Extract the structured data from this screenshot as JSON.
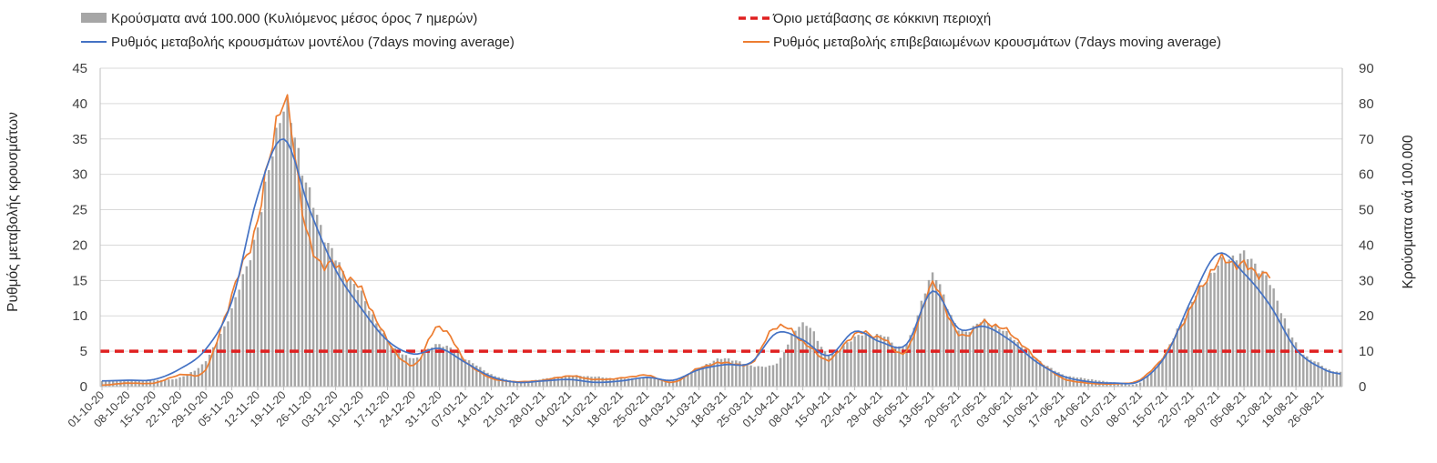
{
  "chart_data": {
    "type": "bar+line",
    "legend": {
      "bars": "Κρούσματα ανά 100.000 (Κυλιόμενος μέσος όρος 7 ημερών)",
      "threshold": "Όριο μετάβασης σε κόκκινη περιοχή",
      "model": "Ρυθμός μεταβολής κρουσμάτων μοντέλου (7days moving average)",
      "confirmed": "Ρυθμός μεταβολής επιβεβαιωμένων κρουσμάτων (7days moving average)"
    },
    "ylabel_left": "Ρυθμός μεταβολής κρουσμάτων",
    "ylabel_right": "Κρούσματα ανά 100.000",
    "ylim_left": [
      0,
      45
    ],
    "ylim_right": [
      0,
      90
    ],
    "yticks_left": [
      "0",
      "5",
      "10",
      "15",
      "20",
      "25",
      "30",
      "35",
      "40",
      "45"
    ],
    "yticks_right": [
      "0",
      "10",
      "20",
      "30",
      "40",
      "50",
      "60",
      "70",
      "80",
      "90"
    ],
    "x_start": "2020-10-01",
    "x_end": "2021-08-31",
    "xtick_labels": [
      "01-10-20",
      "08-10-20",
      "15-10-20",
      "22-10-20",
      "29-10-20",
      "05-11-20",
      "12-11-20",
      "19-11-20",
      "26-11-20",
      "03-12-20",
      "10-12-20",
      "17-12-20",
      "24-12-20",
      "31-12-20",
      "07-01-21",
      "14-01-21",
      "21-01-21",
      "28-01-21",
      "04-02-21",
      "11-02-21",
      "18-02-21",
      "25-02-21",
      "04-03-21",
      "11-03-21",
      "18-03-21",
      "25-03-21",
      "01-04-21",
      "08-04-21",
      "15-04-21",
      "22-04-21",
      "29-04-21",
      "06-05-21",
      "13-05-21",
      "20-05-21",
      "27-05-21",
      "03-06-21",
      "10-06-21",
      "17-06-21",
      "24-06-21",
      "01-07-21",
      "08-07-21",
      "15-07-21",
      "22-07-21",
      "29-07-21",
      "05-08-21",
      "12-08-21",
      "19-08-21",
      "26-08-21"
    ],
    "threshold_value": 5,
    "grid": "horizontal",
    "legend_position": "top",
    "colors": {
      "bars": "#a6a6a6",
      "threshold": "#e02020",
      "model": "#4472c4",
      "confirmed": "#ed7d31"
    },
    "bars_weekly": {
      "dates": [
        "2020-10-01",
        "2020-10-08",
        "2020-10-15",
        "2020-10-22",
        "2020-10-29",
        "2020-11-05",
        "2020-11-12",
        "2020-11-19",
        "2020-11-26",
        "2020-12-03",
        "2020-12-10",
        "2020-12-17",
        "2020-12-24",
        "2020-12-31",
        "2021-01-07",
        "2021-01-14",
        "2021-01-21",
        "2021-01-28",
        "2021-02-04",
        "2021-02-11",
        "2021-02-18",
        "2021-02-25",
        "2021-03-04",
        "2021-03-11",
        "2021-03-18",
        "2021-03-25",
        "2021-04-01",
        "2021-04-08",
        "2021-04-15",
        "2021-04-22",
        "2021-04-29",
        "2021-05-06",
        "2021-05-13",
        "2021-05-20",
        "2021-05-27",
        "2021-06-03",
        "2021-06-10",
        "2021-06-17",
        "2021-06-24",
        "2021-07-01",
        "2021-07-08",
        "2021-07-15",
        "2021-07-22",
        "2021-07-29",
        "2021-08-05",
        "2021-08-12",
        "2021-08-19",
        "2021-08-26",
        "2021-08-31"
      ],
      "values": [
        1.6,
        1.8,
        1.8,
        2.6,
        7.5,
        22,
        45,
        78,
        54,
        36,
        26,
        13,
        8,
        12,
        8,
        3.5,
        1.5,
        2.2,
        3.1,
        2.8,
        2.2,
        2.6,
        1.6,
        5.4,
        8,
        6,
        6.8,
        18,
        9.2,
        14,
        14.6,
        12,
        31,
        16,
        18.4,
        14.2,
        8,
        3.5,
        2.2,
        1.2,
        1.2,
        10,
        24,
        34,
        37,
        29,
        12,
        6,
        4
      ]
    },
    "model_weekly": {
      "dates": [
        "2020-10-01",
        "2020-10-08",
        "2020-10-15",
        "2020-10-22",
        "2020-10-29",
        "2020-11-05",
        "2020-11-12",
        "2020-11-19",
        "2020-11-26",
        "2020-12-03",
        "2020-12-10",
        "2020-12-17",
        "2020-12-24",
        "2020-12-31",
        "2021-01-07",
        "2021-01-14",
        "2021-01-21",
        "2021-01-28",
        "2021-02-04",
        "2021-02-11",
        "2021-02-18",
        "2021-02-25",
        "2021-03-04",
        "2021-03-11",
        "2021-03-18",
        "2021-03-25",
        "2021-04-01",
        "2021-04-08",
        "2021-04-15",
        "2021-04-22",
        "2021-04-29",
        "2021-05-06",
        "2021-05-13",
        "2021-05-20",
        "2021-05-27",
        "2021-06-03",
        "2021-06-10",
        "2021-06-17",
        "2021-06-24",
        "2021-07-01",
        "2021-07-08",
        "2021-07-15",
        "2021-07-22",
        "2021-07-29",
        "2021-08-05",
        "2021-08-12",
        "2021-08-19",
        "2021-08-26",
        "2021-08-31"
      ],
      "values": [
        0.8,
        0.9,
        1.0,
        2.5,
        5.3,
        12,
        27,
        35,
        25,
        16.5,
        11,
        6.5,
        4.6,
        5.4,
        3.4,
        1.4,
        0.6,
        0.8,
        1.0,
        0.6,
        0.8,
        1.3,
        0.9,
        2.4,
        3.1,
        3.4,
        7.6,
        6.6,
        4.4,
        7.8,
        6.3,
        6.0,
        13.5,
        8.2,
        8.5,
        6.5,
        3.5,
        1.5,
        0.7,
        0.5,
        0.8,
        4.5,
        12.5,
        18.8,
        16,
        11.5,
        5.3,
        2.6,
        1.8
      ]
    },
    "confirmed_weekly": {
      "dates": [
        "2020-10-01",
        "2020-10-08",
        "2020-10-15",
        "2020-10-22",
        "2020-10-29",
        "2020-11-05",
        "2020-11-12",
        "2020-11-19",
        "2020-11-26",
        "2020-12-03",
        "2020-12-10",
        "2020-12-17",
        "2020-12-24",
        "2020-12-31",
        "2021-01-07",
        "2021-01-14",
        "2021-01-21",
        "2021-01-28",
        "2021-02-04",
        "2021-02-11",
        "2021-02-18",
        "2021-02-25",
        "2021-03-04",
        "2021-03-11",
        "2021-03-18",
        "2021-03-25",
        "2021-04-01",
        "2021-04-08",
        "2021-04-15",
        "2021-04-22",
        "2021-04-29",
        "2021-05-06",
        "2021-05-13",
        "2021-05-20",
        "2021-05-27",
        "2021-06-03",
        "2021-06-10",
        "2021-06-17",
        "2021-06-24",
        "2021-07-01",
        "2021-07-08",
        "2021-07-15",
        "2021-07-22",
        "2021-07-29",
        "2021-08-05",
        "2021-08-12"
      ],
      "values": [
        0.2,
        0.5,
        0.5,
        1.7,
        2.5,
        13,
        23.5,
        40,
        20,
        17,
        13.5,
        6.5,
        3.0,
        8.5,
        3.6,
        1.2,
        0.7,
        0.9,
        1.5,
        1.0,
        1.2,
        1.6,
        0.6,
        2.6,
        3.4,
        3.3,
        8.6,
        6.4,
        3.8,
        7.4,
        6.9,
        5.0,
        14.2,
        7.3,
        9.0,
        7.5,
        3.9,
        1.2,
        0.5,
        0.4,
        1.0,
        4.8,
        11.5,
        17.5,
        17,
        15.5
      ]
    }
  }
}
